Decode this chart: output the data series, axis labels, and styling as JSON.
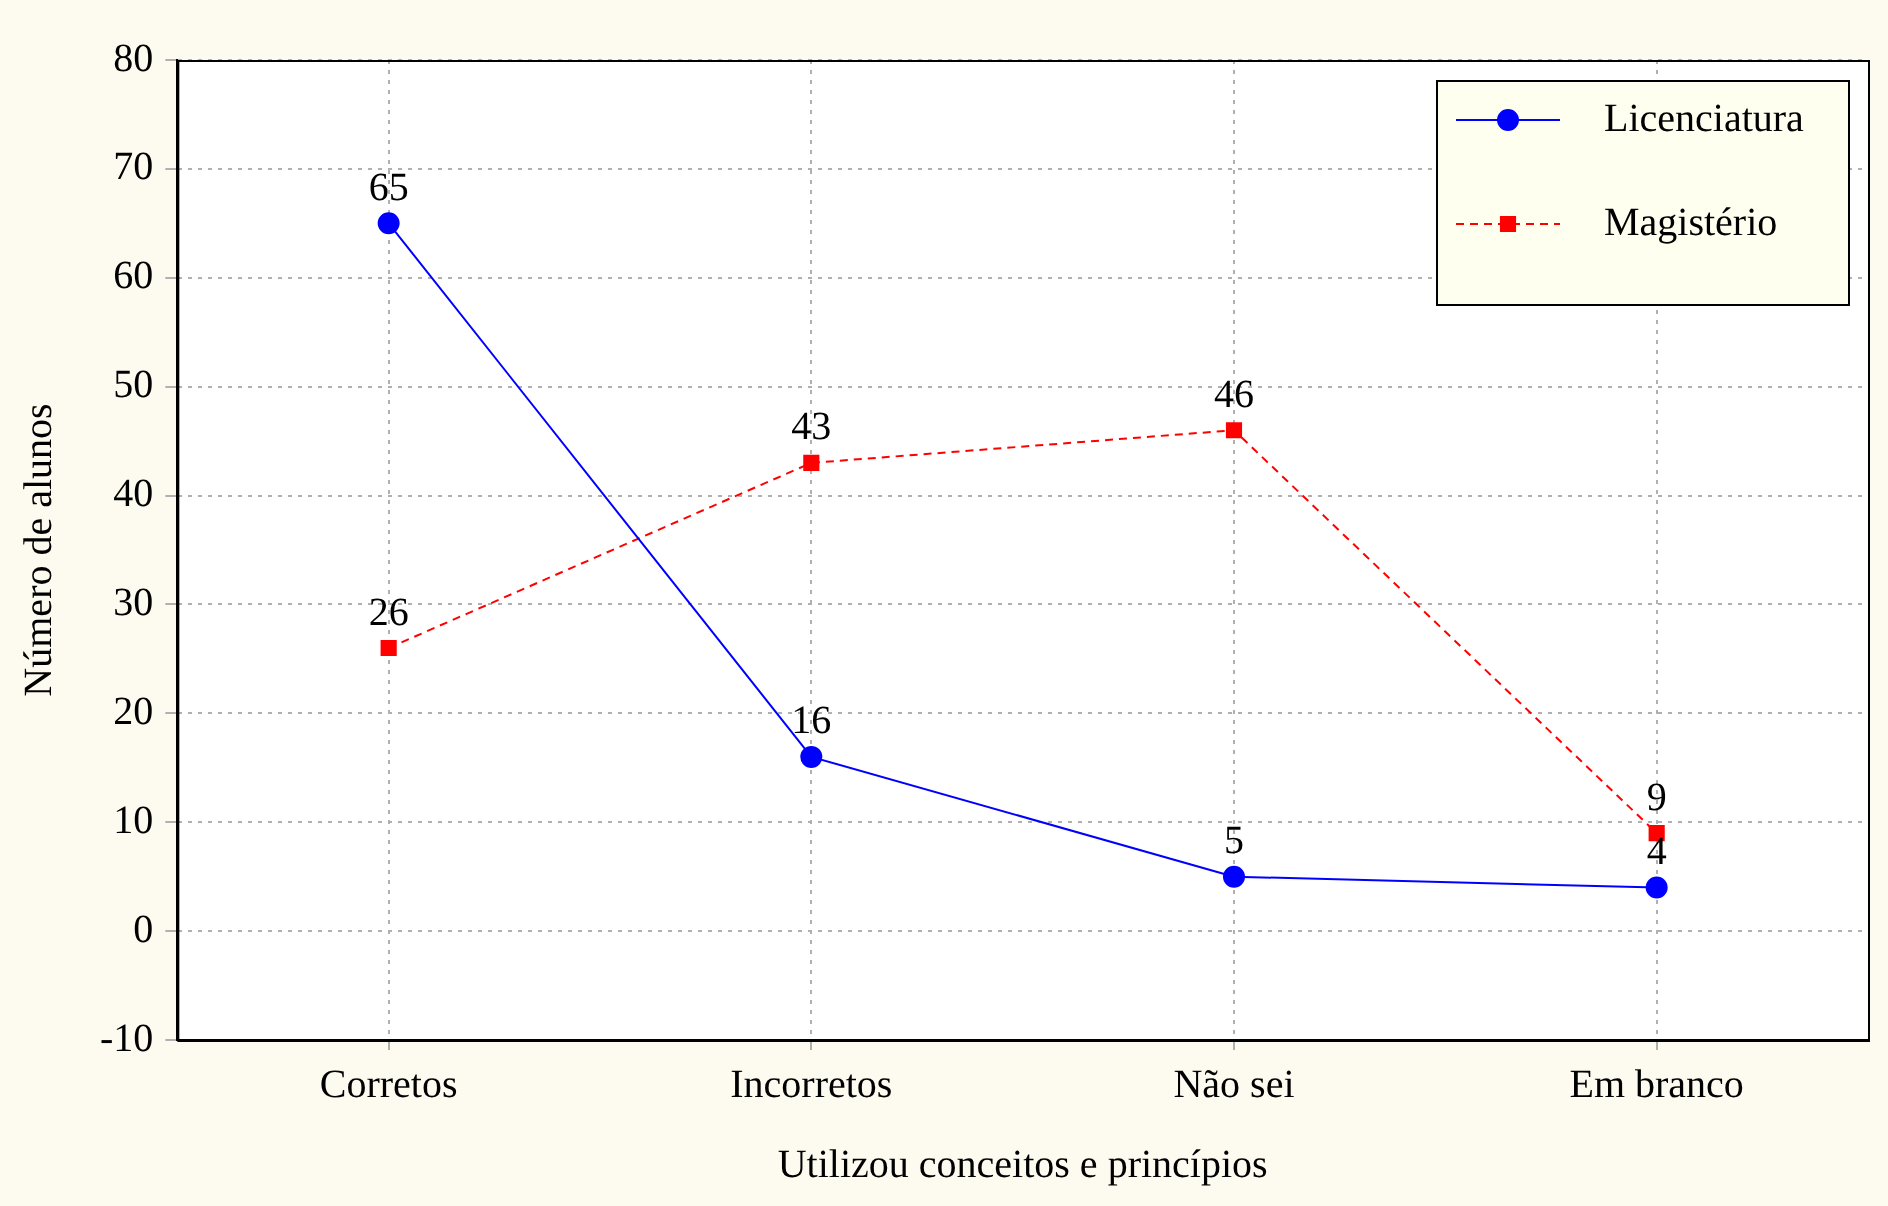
{
  "chart_data": {
    "type": "line",
    "xlabel": "Utilizou conceitos e princípios",
    "ylabel": "Número de alunos",
    "categories": [
      "Corretos",
      "Incorretos",
      "Não sei",
      "Em branco"
    ],
    "series": [
      {
        "name": "Licenciatura",
        "color": "#0000ff",
        "values": [
          65,
          16,
          5,
          4
        ],
        "marker": "circle",
        "line_style": "solid"
      },
      {
        "name": "Magistério",
        "color": "#ff0000",
        "values": [
          26,
          43,
          46,
          9
        ],
        "marker": "square",
        "line_style": "dashed"
      }
    ],
    "ylim": [
      -10,
      80
    ],
    "yticks": [
      -10,
      0,
      10,
      20,
      30,
      40,
      50,
      60,
      70,
      80
    ],
    "grid": true,
    "legend": "top right",
    "data_labels": true
  }
}
